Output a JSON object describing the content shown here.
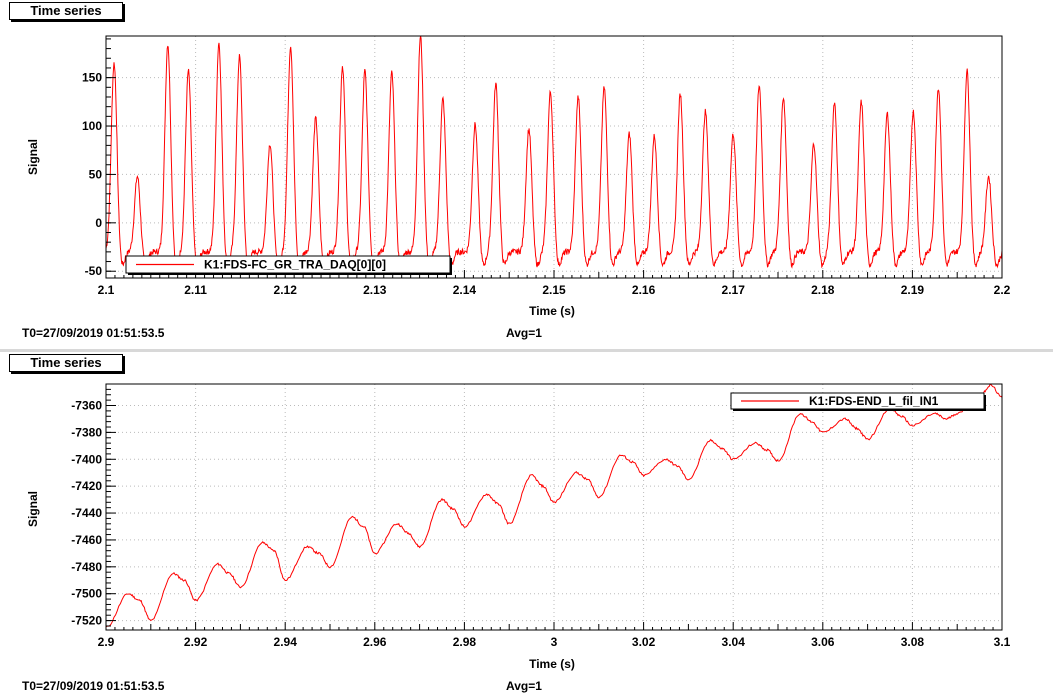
{
  "panels": [
    {
      "tab_label": "Time series",
      "t0_text": "T0=27/09/2019 01:51:53.5",
      "avg_text": "Avg=1"
    },
    {
      "tab_label": "Time series",
      "t0_text": "T0=27/09/2019 01:51:53.5",
      "avg_text": "Avg=1"
    }
  ],
  "colors": {
    "trace": "#ff0000",
    "grid": "#bbbbbb",
    "axis": "#000000"
  },
  "chart_data": [
    {
      "type": "line",
      "xlabel": "Time (s)",
      "ylabel": "Signal",
      "xlim": [
        2.1,
        2.2
      ],
      "ylim": [
        -57,
        193
      ],
      "grid": true,
      "legend_position": "bottom-left",
      "x_ticks": [
        2.1,
        2.11,
        2.12,
        2.13,
        2.14,
        2.15,
        2.16,
        2.17,
        2.18,
        2.19,
        2.2
      ],
      "x_tick_labels": [
        "2.1",
        "2.11",
        "2.12",
        "2.13",
        "2.14",
        "2.15",
        "2.16",
        "2.17",
        "2.18",
        "2.19",
        "2.2"
      ],
      "y_ticks": [
        -50,
        0,
        50,
        100,
        150
      ],
      "y_tick_labels": [
        "-50",
        "0",
        "50",
        "100",
        "150"
      ],
      "series": [
        {
          "name": "K1:FDS-FC_GR_TRA_DAQ[0][0]",
          "baseline": -30,
          "peak_times": [
            2.1009,
            2.1035,
            2.1069,
            2.1092,
            2.1126,
            2.1149,
            2.1183,
            2.1206,
            2.1234,
            2.1264,
            2.1289,
            2.1319,
            2.1351,
            2.1376,
            2.1412,
            2.1435,
            2.1472,
            2.1496,
            2.1527,
            2.1556,
            2.1584,
            2.1612,
            2.1641,
            2.1669,
            2.17,
            2.1729,
            2.1756,
            2.179,
            2.1813,
            2.1843,
            2.1872,
            2.1901,
            2.1929,
            2.1961,
            2.1985
          ],
          "peak_values": [
            165,
            48,
            185,
            157,
            186,
            172,
            82,
            183,
            108,
            162,
            157,
            155,
            193,
            128,
            102,
            144,
            97,
            135,
            130,
            140,
            92,
            90,
            133,
            115,
            92,
            142,
            130,
            82,
            125,
            125,
            113,
            115,
            140,
            157,
            48
          ]
        }
      ]
    },
    {
      "type": "line",
      "xlabel": "Time (s)",
      "ylabel": "Signal",
      "xlim": [
        2.9,
        3.1
      ],
      "ylim": [
        -7527,
        -7344
      ],
      "grid": true,
      "legend_position": "top-right",
      "x_ticks": [
        2.9,
        2.92,
        2.94,
        2.96,
        2.98,
        3.0,
        3.02,
        3.04,
        3.06,
        3.08,
        3.1
      ],
      "x_tick_labels": [
        "2.9",
        "2.92",
        "2.94",
        "2.96",
        "2.98",
        "3",
        "3.02",
        "3.04",
        "3.06",
        "3.08",
        "3.1"
      ],
      "y_ticks": [
        -7520,
        -7500,
        -7480,
        -7460,
        -7440,
        -7420,
        -7400,
        -7380,
        -7360
      ],
      "y_tick_labels": [
        "-7520",
        "-7500",
        "-7480",
        "-7460",
        "-7440",
        "-7420",
        "-7400",
        "-7380",
        "-7360"
      ],
      "series": [
        {
          "name": "K1:FDS-END_L_fil_IN1",
          "x": [
            2.9,
            2.905,
            2.9075,
            2.91,
            2.915,
            2.9175,
            2.92,
            2.925,
            2.9275,
            2.93,
            2.935,
            2.9375,
            2.94,
            2.945,
            2.9475,
            2.95,
            2.955,
            2.9575,
            2.96,
            2.965,
            2.9675,
            2.97,
            2.975,
            2.9775,
            2.98,
            2.985,
            2.9875,
            2.99,
            2.995,
            2.9975,
            3.0,
            3.005,
            3.0075,
            3.01,
            3.015,
            3.0175,
            3.02,
            3.025,
            3.0275,
            3.03,
            3.035,
            3.0375,
            3.04,
            3.045,
            3.0475,
            3.05,
            3.055,
            3.0575,
            3.06,
            3.065,
            3.0675,
            3.07,
            3.075,
            3.0775,
            3.08,
            3.085,
            3.0875,
            3.09,
            3.095,
            3.0975,
            3.1
          ],
          "y": [
            -7525,
            -7500,
            -7505,
            -7520,
            -7485,
            -7490,
            -7505,
            -7478,
            -7485,
            -7495,
            -7462,
            -7468,
            -7490,
            -7465,
            -7470,
            -7480,
            -7443,
            -7450,
            -7470,
            -7448,
            -7455,
            -7465,
            -7430,
            -7437,
            -7450,
            -7426,
            -7433,
            -7448,
            -7412,
            -7420,
            -7432,
            -7410,
            -7415,
            -7428,
            -7397,
            -7402,
            -7412,
            -7400,
            -7405,
            -7415,
            -7386,
            -7392,
            -7400,
            -7388,
            -7393,
            -7401,
            -7366,
            -7372,
            -7380,
            -7370,
            -7377,
            -7385,
            -7362,
            -7368,
            -7375,
            -7366,
            -7370,
            -7366,
            -7353,
            -7345,
            -7354
          ]
        }
      ]
    }
  ]
}
